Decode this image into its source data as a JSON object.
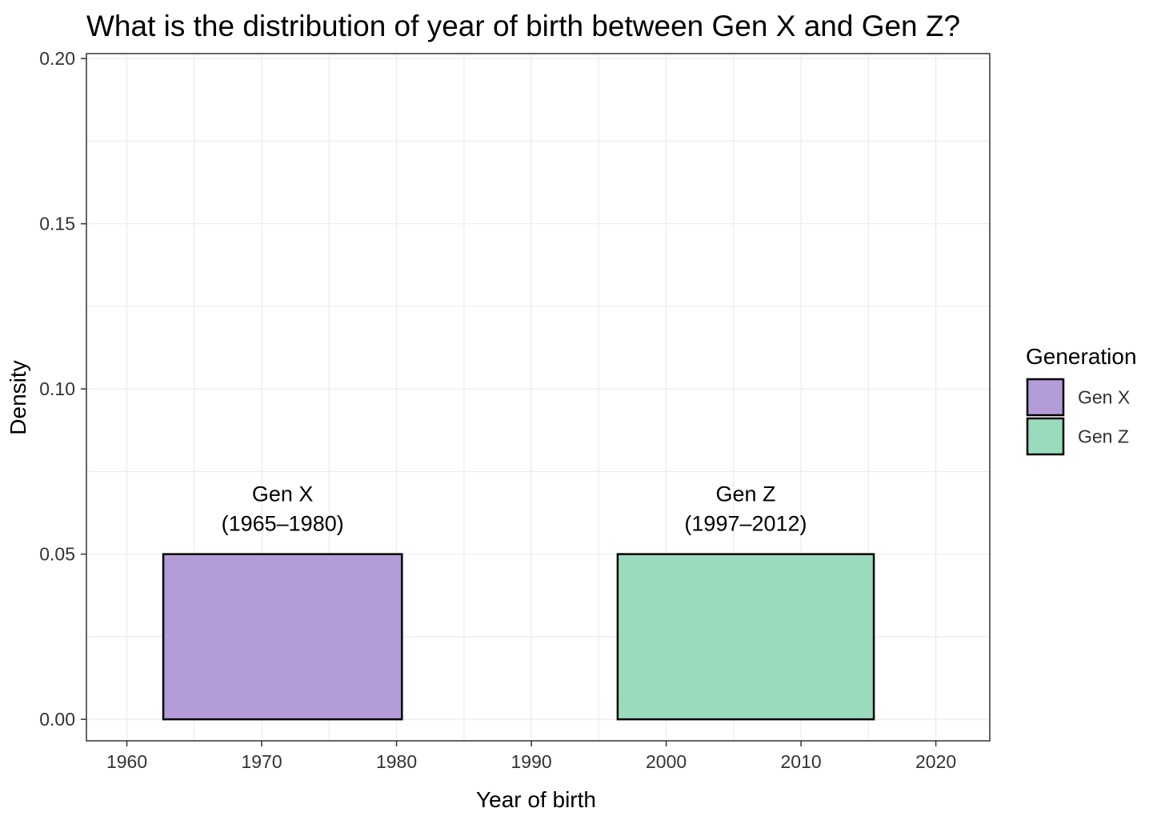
{
  "chart_data": {
    "type": "bar",
    "title": "What is the distribution of year of birth between Gen X and Gen Z?",
    "xlabel": "Year of birth",
    "ylabel": "Density",
    "xlim": [
      1957,
      2024
    ],
    "ylim": [
      -0.0065,
      0.2015
    ],
    "x_ticks": [
      1960,
      1970,
      1980,
      1990,
      2000,
      2010,
      2020
    ],
    "y_ticks": [
      0,
      0.05,
      0.1,
      0.15,
      0.2
    ],
    "x_tick_labels": [
      "1960",
      "1970",
      "1980",
      "1990",
      "2000",
      "2010",
      "2020"
    ],
    "y_tick_labels": [
      "0.00",
      "0.05",
      "0.10",
      "0.15",
      "0.20"
    ],
    "grid": true,
    "legend": {
      "title": "Generation",
      "position": "right",
      "entries": [
        "Gen X",
        "Gen Z"
      ]
    },
    "series": [
      {
        "name": "Gen X",
        "x_start": 1962.7,
        "x_end": 1980.4,
        "value": 0.05,
        "color": "#b49cd8",
        "annotation": [
          "Gen X",
          "(1965–1980)"
        ]
      },
      {
        "name": "Gen Z",
        "x_start": 1996.4,
        "x_end": 2015.4,
        "value": 0.05,
        "color": "#9adabd",
        "annotation": [
          "Gen Z",
          "(1997–2012)"
        ]
      }
    ]
  }
}
